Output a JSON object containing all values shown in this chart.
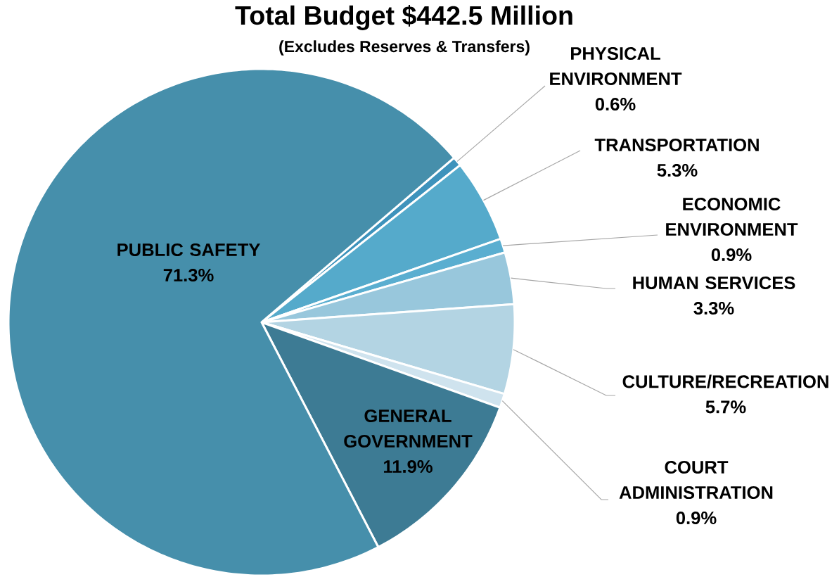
{
  "chart_data": {
    "type": "pie",
    "title": "Total Budget $442.5 Million",
    "subtitle": "(Excludes Reserves & Transfers)",
    "categories": [
      "PHYSICAL ENVIRONMENT",
      "TRANSPORTATION",
      "ECONOMIC ENVIRONMENT",
      "HUMAN SERVICES",
      "CULTURE/RECREATION",
      "COURT ADMINISTRATION",
      "GENERAL GOVERNMENT",
      "PUBLIC SAFETY"
    ],
    "values": [
      0.6,
      5.3,
      0.9,
      3.3,
      5.7,
      0.9,
      11.9,
      71.3
    ],
    "value_labels": [
      "0.6%",
      "5.3%",
      "0.9%",
      "3.3%",
      "5.7%",
      "0.9%",
      "11.9%",
      "71.3%"
    ],
    "colors": [
      "#3e93bc",
      "#55aacb",
      "#5aaed0",
      "#98c7dc",
      "#b3d4e3",
      "#cfe3ee",
      "#3d7b94",
      "#468fab"
    ]
  }
}
